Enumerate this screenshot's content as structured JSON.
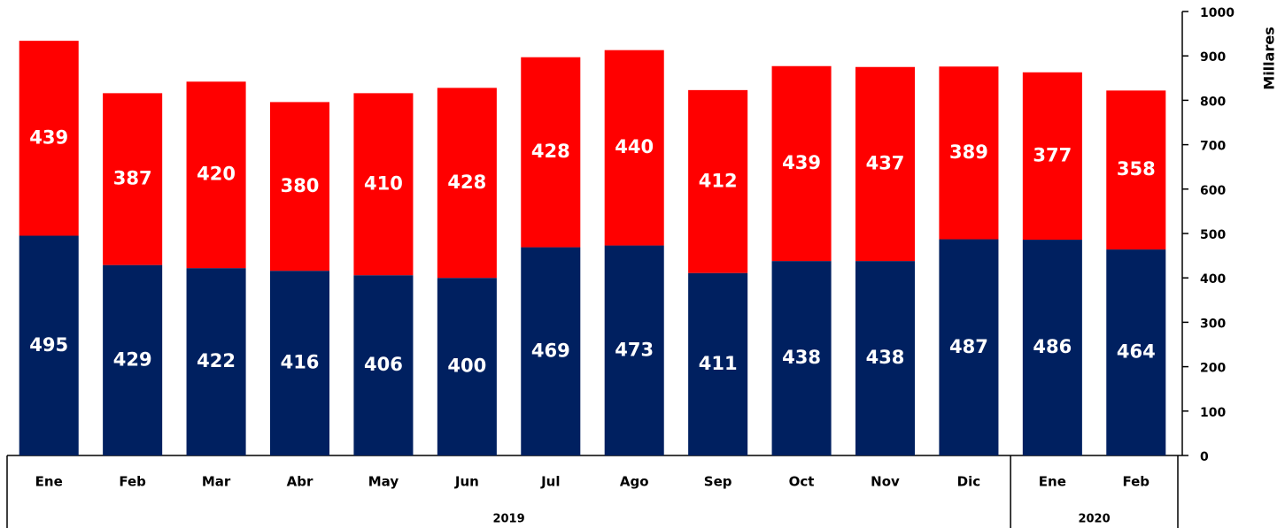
{
  "chart_data": {
    "type": "stacked_bar",
    "y_axis_label": "Millares",
    "categories": [
      "Ene",
      "Feb",
      "Mar",
      "Abr",
      "May",
      "Jun",
      "Jul",
      "Ago",
      "Sep",
      "Oct",
      "Nov",
      "Dic",
      "Ene",
      "Feb"
    ],
    "category_groups": [
      {
        "label": "2019",
        "span": 12
      },
      {
        "label": "2020",
        "span": 2
      }
    ],
    "series": [
      {
        "color": "#002060",
        "values": [
          495,
          429,
          422,
          416,
          406,
          400,
          469,
          473,
          411,
          438,
          438,
          487,
          486,
          464
        ]
      },
      {
        "color": "#ff0000",
        "values": [
          439,
          387,
          420,
          380,
          410,
          428,
          428,
          440,
          412,
          439,
          437,
          389,
          377,
          358
        ]
      }
    ],
    "ylim": [
      0,
      1000
    ],
    "yticks": [
      0,
      100,
      200,
      300,
      400,
      500,
      600,
      700,
      800,
      900,
      1000
    ],
    "y_axis_side": "right"
  }
}
